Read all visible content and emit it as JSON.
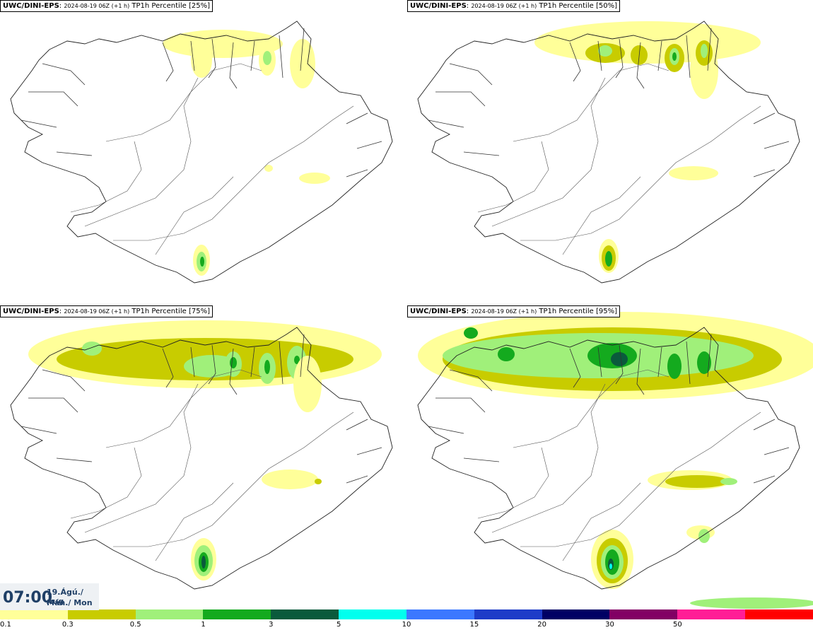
{
  "panels": [
    {
      "source": "UWC/DINI-EPS",
      "run": "2024-08-19 06Z (+1 h)",
      "field": "TP1h Percentile [25%]",
      "level": 0
    },
    {
      "source": "UWC/DINI-EPS",
      "run": "2024-08-19 06Z (+1 h)",
      "field": "TP1h Percentile [50%]",
      "level": 1
    },
    {
      "source": "UWC/DINI-EPS",
      "run": "2024-08-19 06Z (+1 h)",
      "field": "TP1h Percentile [75%]",
      "level": 2
    },
    {
      "source": "UWC/DINI-EPS",
      "run": "2024-08-19 06Z (+1 h)",
      "field": "TP1h Percentile [95%]",
      "level": 3
    }
  ],
  "timebox": {
    "time": "07:00",
    "date_line1": "19.Ágú./ Aug",
    "date_line2": "Mán./ Mon"
  },
  "legend": {
    "colors": [
      "#ffff99",
      "#c8cc00",
      "#a0f07a",
      "#14aa1e",
      "#0a5a3c",
      "#00ffee",
      "#3c78ff",
      "#1e3cc8",
      "#000064",
      "#820064",
      "#ff1e96",
      "#ff0000"
    ],
    "labels": [
      "0.1",
      "0.3",
      "0.5",
      "1",
      "3",
      "5",
      "10",
      "15",
      "20",
      "30",
      "50"
    ]
  }
}
